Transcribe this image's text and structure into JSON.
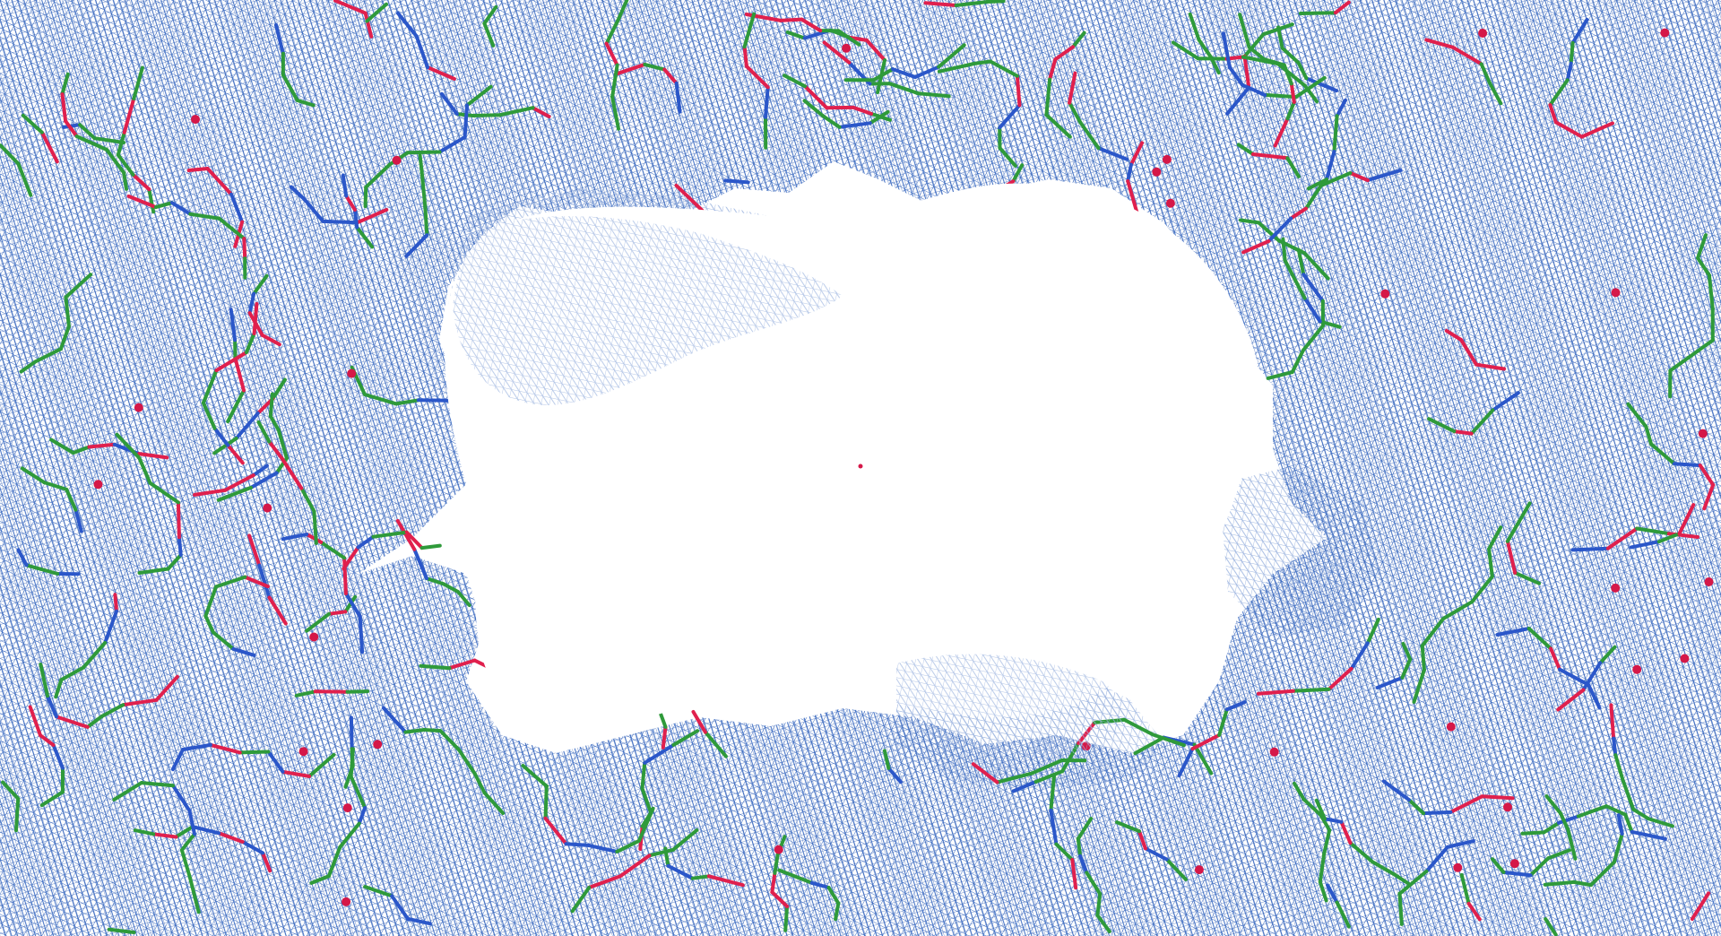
{
  "scene": {
    "kind": "electron density map with atomic model (molecular viewer render)",
    "background_color": "#ffffff",
    "mesh_color": "#3f6fc4",
    "mesh_faint_color": "#9fb6e0",
    "carbon_color": "#2f9a3a",
    "nitrogen_color": "#2b57c9",
    "oxygen_color": "#e0204d",
    "sulfur_color": "#c8902a",
    "water_color": "#d51848"
  }
}
